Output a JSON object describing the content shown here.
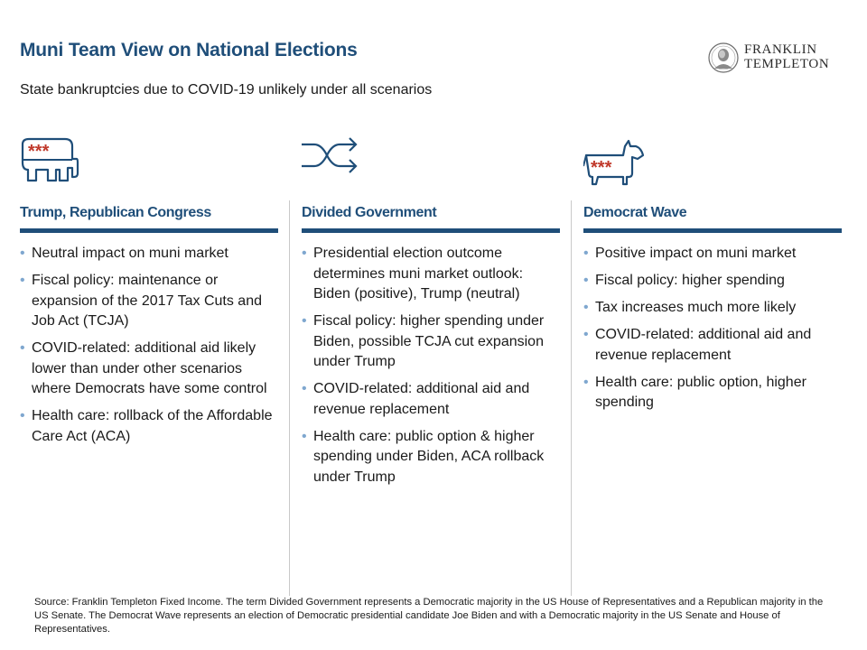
{
  "header": {
    "title": "Muni Team View on National Elections",
    "subtitle": "State bankruptcies due to COVID-19 unlikely under all scenarios"
  },
  "logo": {
    "line1": "FRANKLIN",
    "line2": "TEMPLETON"
  },
  "icons": {
    "stars_symbol": "***",
    "column1": "republican-elephant-icon",
    "column2": "shuffle-arrows-icon",
    "column3": "democrat-donkey-icon"
  },
  "colors": {
    "heading_blue": "#1f4e79",
    "bullet_blue": "#7fa7cf",
    "star_red": "#c0392b"
  },
  "columns": [
    {
      "heading": "Trump, Republican Congress",
      "bullets": [
        "Neutral impact on muni market",
        "Fiscal policy: maintenance or expansion of the 2017 Tax Cuts and Job Act (TCJA)",
        "COVID-related: additional aid likely lower than under other scenarios where Democrats have some control",
        "Health care: rollback of the Affordable Care Act (ACA)"
      ]
    },
    {
      "heading": "Divided Government",
      "bullets": [
        "Presidential election outcome determines muni market outlook: Biden (positive), Trump (neutral)",
        "Fiscal policy: higher spending under Biden, possible TCJA cut expansion under Trump",
        "COVID-related: additional aid and revenue replacement",
        "Health care: public option & higher spending under Biden, ACA rollback under Trump"
      ]
    },
    {
      "heading": "Democrat Wave",
      "bullets": [
        "Positive impact on muni market",
        "Fiscal policy: higher spending",
        "Tax increases much more likely",
        "COVID-related: additional aid and revenue replacement",
        "Health care: public option, higher spending"
      ]
    }
  ],
  "footnote": "Source: Franklin Templeton Fixed Income. The term Divided Government represents a Democratic majority in the US House of Representatives and a Republican majority in the US Senate. The Democrat Wave represents an election of Democratic presidential candidate Joe Biden and with a Democratic majority in the US Senate and House of Representatives."
}
